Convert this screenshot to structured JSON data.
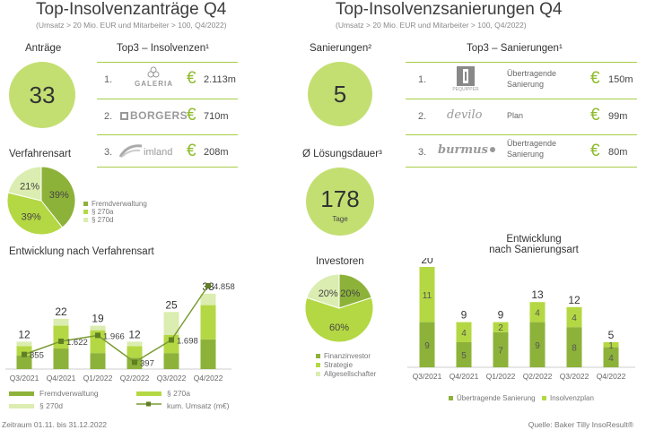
{
  "left": {
    "title": "Top-Insolvenzanträge Q4",
    "subtitle": "(Umsatz > 20 Mio. EUR und Mitarbeiter > 100, Q4/2022)",
    "count_label": "Anträge",
    "count_value": "33",
    "top3_title": "Top3 – Insolvenzen¹",
    "top3": [
      {
        "rank": "1.",
        "logo": "GALERIA",
        "euro": "€",
        "amount": "2.113m"
      },
      {
        "rank": "2.",
        "logo": "BORGERS",
        "euro": "€",
        "amount": "710m"
      },
      {
        "rank": "3.",
        "logo": "imland",
        "euro": "€",
        "amount": "208m"
      }
    ],
    "procedure_title": "Verfahrensart",
    "dev_title": "Entwicklung nach Verfahrensart"
  },
  "right": {
    "title": "Top-Insolvenzsanierungen Q4",
    "subtitle": "(Umsatz > 20 Mio. EUR und Mitarbeiter > 100, Q4/2022)",
    "count_label": "Sanierungen²",
    "count_value": "5",
    "top3_title": "Top3 – Sanierungen¹",
    "top3": [
      {
        "rank": "1.",
        "logo": "PEQUIPPER",
        "desc1": "Übertragende",
        "desc2": "Sanierung",
        "euro": "€",
        "amount": "150m"
      },
      {
        "rank": "2.",
        "logo": "devilo",
        "desc1": "Plan",
        "desc2": "",
        "euro": "€",
        "amount": "99m"
      },
      {
        "rank": "3.",
        "logo": "burmus",
        "desc1": "Übertragende",
        "desc2": "Sanierung",
        "euro": "€",
        "amount": "80m"
      }
    ],
    "duration_title": "Ø Lösungsdauer³",
    "duration_value": "178",
    "duration_unit": "Tage",
    "investors_title": "Investoren",
    "dev_title_1": "Entwicklung",
    "dev_title_2": "nach Sanierungsart"
  },
  "footer": {
    "left": "Zeitraum 01.11. bis 31.12.2022",
    "right": "Quelle: Baker Tilly InsoResult®"
  },
  "colors": {
    "dark_green": "#8db23a",
    "mid_green": "#b4d843",
    "light_green": "#dbedb0",
    "circle_green": "#c3df72",
    "line": "#7a9b32"
  },
  "chart_data": [
    {
      "type": "pie",
      "title": "Verfahrensart",
      "labels": [
        "Fremdverwaltung",
        "§ 270a",
        "§ 270d"
      ],
      "values": [
        39,
        39,
        21
      ],
      "value_labels": [
        "39%",
        "39%",
        "21%"
      ]
    },
    {
      "type": "bar",
      "title": "Entwicklung nach Verfahrensart",
      "categories": [
        "Q3/2021",
        "Q4/2021",
        "Q1/2022",
        "Q2/2022",
        "Q3/2022",
        "Q4/2022"
      ],
      "totals": [
        12,
        22,
        19,
        12,
        25,
        33
      ],
      "series": [
        {
          "name": "Fremdverwaltung",
          "values": [
            6,
            9,
            7,
            5,
            7,
            13
          ]
        },
        {
          "name": "§ 270a",
          "values": [
            4,
            10,
            10,
            5,
            8,
            15
          ]
        },
        {
          "name": "§ 270d",
          "values": [
            2,
            3,
            2,
            2,
            10,
            5
          ]
        }
      ],
      "line_series": {
        "name": "kum. Umsatz (m€)",
        "values": [
          855,
          1622,
          1966,
          397,
          1698,
          4858
        ],
        "labels": [
          "855",
          "1.622",
          "1.966",
          "397",
          "1.698",
          "4.858"
        ]
      }
    },
    {
      "type": "pie",
      "title": "Investoren",
      "labels": [
        "Finanzinvestor",
        "Strategie",
        "Allgesellschafter"
      ],
      "values": [
        20,
        60,
        20
      ],
      "value_labels": [
        "20%",
        "60%",
        "20%"
      ]
    },
    {
      "type": "bar",
      "title": "Entwicklung nach Sanierungsart",
      "categories": [
        "Q3/2021",
        "Q4/2021",
        "Q1/2022",
        "Q2/2022",
        "Q3/2022",
        "Q4/2022"
      ],
      "totals": [
        20,
        9,
        9,
        13,
        12,
        5
      ],
      "series": [
        {
          "name": "Übertragende Sanierung",
          "values": [
            9,
            5,
            7,
            9,
            8,
            4
          ]
        },
        {
          "name": "Insolvenzplan",
          "values": [
            11,
            4,
            2,
            4,
            4,
            1
          ]
        }
      ]
    }
  ]
}
